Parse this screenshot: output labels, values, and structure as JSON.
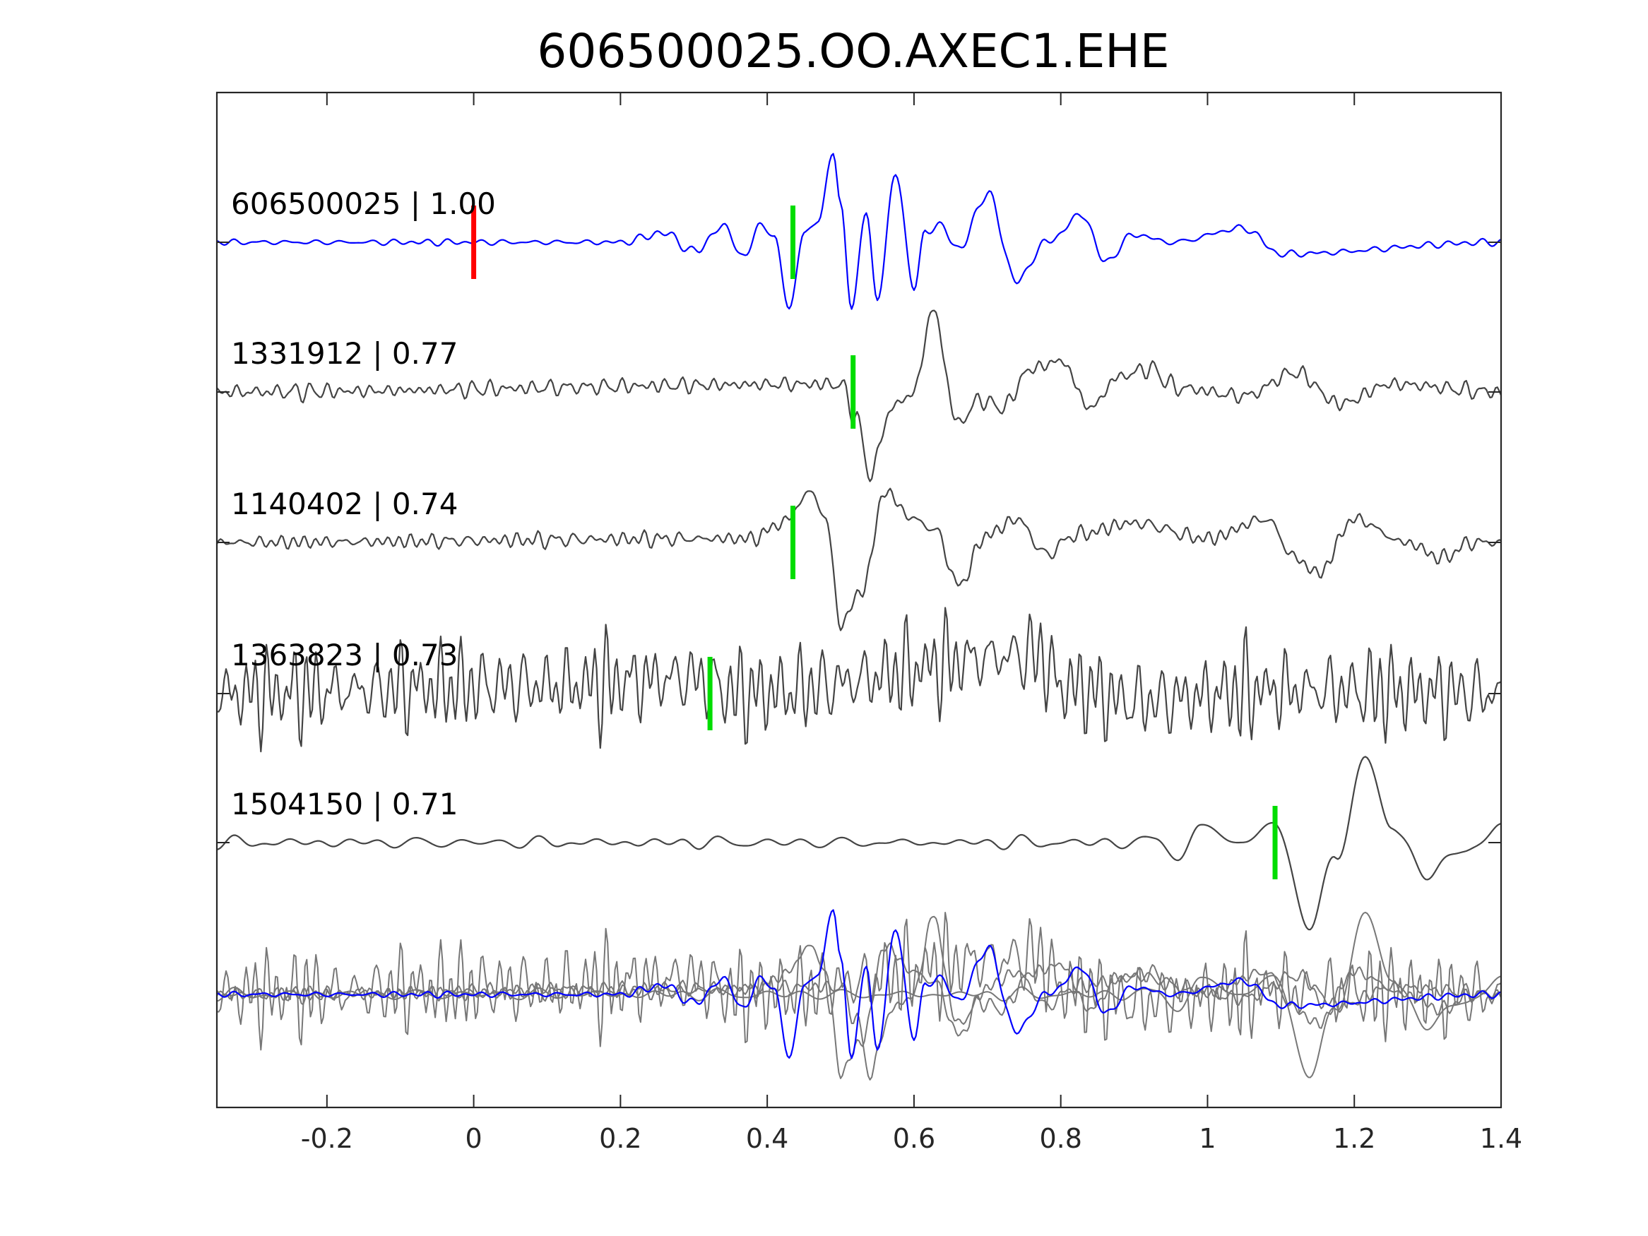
{
  "chart_data": {
    "type": "line",
    "title": "606500025.OO.AXEC1.EHE",
    "xlabel": "",
    "ylabel": "",
    "xlim": [
      -0.35,
      1.4
    ],
    "x_ticks": [
      -0.2,
      0,
      0.2,
      0.4,
      0.6,
      0.8,
      1,
      1.2,
      1.4
    ],
    "x_tick_labels": [
      "-0.2",
      "0",
      "0.2",
      "0.4",
      "0.6",
      "0.8",
      "1",
      "1.2",
      "1.4"
    ],
    "grid": false,
    "legend": "none",
    "traces": [
      {
        "label": "606500025 | 1.00",
        "id": "606500025",
        "correlation": 1.0,
        "color": "#0000ff",
        "marker_time": 0.435,
        "origin_marker_time": 0.0,
        "noise_amp": 0.05,
        "noise_freq": 33,
        "waveform": [
          [
            -0.35,
            0.0
          ],
          [
            0.2,
            0.0
          ],
          [
            0.26,
            0.12
          ],
          [
            0.3,
            -0.12
          ],
          [
            0.34,
            0.2
          ],
          [
            0.37,
            -0.2
          ],
          [
            0.39,
            0.25
          ],
          [
            0.41,
            0.05
          ],
          [
            0.43,
            -0.85
          ],
          [
            0.45,
            0.1
          ],
          [
            0.47,
            0.3
          ],
          [
            0.49,
            1.15
          ],
          [
            0.5,
            0.5
          ],
          [
            0.515,
            -0.85
          ],
          [
            0.535,
            0.4
          ],
          [
            0.55,
            -0.75
          ],
          [
            0.575,
            0.9
          ],
          [
            0.6,
            -0.6
          ],
          [
            0.615,
            0.15
          ],
          [
            0.64,
            0.2
          ],
          [
            0.66,
            -0.1
          ],
          [
            0.7,
            0.62
          ],
          [
            0.74,
            -0.5
          ],
          [
            0.78,
            0.0
          ],
          [
            0.83,
            0.35
          ],
          [
            0.86,
            -0.25
          ],
          [
            0.9,
            0.1
          ],
          [
            0.95,
            0.0
          ],
          [
            1.05,
            0.18
          ],
          [
            1.1,
            -0.15
          ],
          [
            1.4,
            0.0
          ]
        ]
      },
      {
        "label": "1331912 | 0.77",
        "id": "1331912",
        "correlation": 0.77,
        "color": "#444444",
        "marker_time": 0.517,
        "noise_amp": 0.1,
        "noise_freq": 52,
        "waveform": [
          [
            -0.35,
            0.0
          ],
          [
            0.5,
            0.1
          ],
          [
            0.52,
            -0.3
          ],
          [
            0.54,
            -1.05
          ],
          [
            0.57,
            -0.2
          ],
          [
            0.6,
            0.0
          ],
          [
            0.625,
            1.05
          ],
          [
            0.66,
            -0.4
          ],
          [
            0.69,
            -0.1
          ],
          [
            0.72,
            -0.2
          ],
          [
            0.76,
            0.3
          ],
          [
            0.8,
            0.4
          ],
          [
            0.84,
            -0.2
          ],
          [
            0.88,
            0.2
          ],
          [
            0.92,
            0.3
          ],
          [
            0.96,
            0.05
          ],
          [
            1.05,
            -0.05
          ],
          [
            1.12,
            0.25
          ],
          [
            1.18,
            -0.15
          ],
          [
            1.25,
            0.1
          ],
          [
            1.4,
            0.0
          ]
        ]
      },
      {
        "label": "1140402 | 0.74",
        "id": "1140402",
        "correlation": 0.74,
        "color": "#444444",
        "marker_time": 0.435,
        "noise_amp": 0.09,
        "noise_freq": 55,
        "waveform": [
          [
            -0.35,
            0.0
          ],
          [
            0.38,
            0.05
          ],
          [
            0.42,
            0.25
          ],
          [
            0.46,
            0.65
          ],
          [
            0.48,
            0.3
          ],
          [
            0.5,
            -1.05
          ],
          [
            0.53,
            -0.6
          ],
          [
            0.56,
            0.65
          ],
          [
            0.6,
            0.3
          ],
          [
            0.63,
            0.15
          ],
          [
            0.66,
            -0.55
          ],
          [
            0.7,
            0.1
          ],
          [
            0.74,
            0.3
          ],
          [
            0.78,
            -0.15
          ],
          [
            0.82,
            0.1
          ],
          [
            0.9,
            0.25
          ],
          [
            1.0,
            0.05
          ],
          [
            1.08,
            0.3
          ],
          [
            1.12,
            -0.2
          ],
          [
            1.15,
            -0.4
          ],
          [
            1.2,
            0.3
          ],
          [
            1.27,
            0.0
          ],
          [
            1.32,
            -0.2
          ],
          [
            1.36,
            0.0
          ],
          [
            1.4,
            0.0
          ]
        ]
      },
      {
        "label": "1363823 | 0.73",
        "id": "1363823",
        "correlation": 0.73,
        "color": "#444444",
        "marker_time": 0.322,
        "noise_amp": 0.55,
        "noise_freq": 58,
        "waveform": [
          [
            -0.35,
            0.0
          ],
          [
            0.05,
            0.1
          ],
          [
            0.1,
            0.1
          ],
          [
            0.3,
            0.2
          ],
          [
            0.36,
            0.0
          ],
          [
            0.77,
            0.5
          ],
          [
            0.8,
            0.1
          ],
          [
            0.9,
            -0.1
          ],
          [
            1.1,
            0.05
          ],
          [
            1.4,
            0.0
          ]
        ]
      },
      {
        "label": "1504150 | 0.71",
        "id": "1504150",
        "correlation": 0.71,
        "color": "#444444",
        "marker_time": 1.092,
        "noise_amp": 0.07,
        "noise_freq": 22,
        "waveform": [
          [
            -0.35,
            0.0
          ],
          [
            0.9,
            0.0
          ],
          [
            0.93,
            0.05
          ],
          [
            0.96,
            -0.2
          ],
          [
            0.99,
            0.2
          ],
          [
            1.05,
            0.0
          ],
          [
            1.09,
            0.25
          ],
          [
            1.14,
            -1.05
          ],
          [
            1.175,
            -0.2
          ],
          [
            1.215,
            1.1
          ],
          [
            1.25,
            0.2
          ],
          [
            1.3,
            -0.4
          ],
          [
            1.35,
            -0.1
          ],
          [
            1.4,
            0.2
          ]
        ]
      }
    ],
    "overlay": {
      "description_colors": {
        "template": "#0000ff",
        "matches": "#777777"
      }
    }
  },
  "colors": {
    "template_trace": "#0000ff",
    "match_trace": "#444444",
    "overlay_trace": "#777777",
    "pick_marker": "#00dd00",
    "origin_marker": "#ff0000"
  }
}
